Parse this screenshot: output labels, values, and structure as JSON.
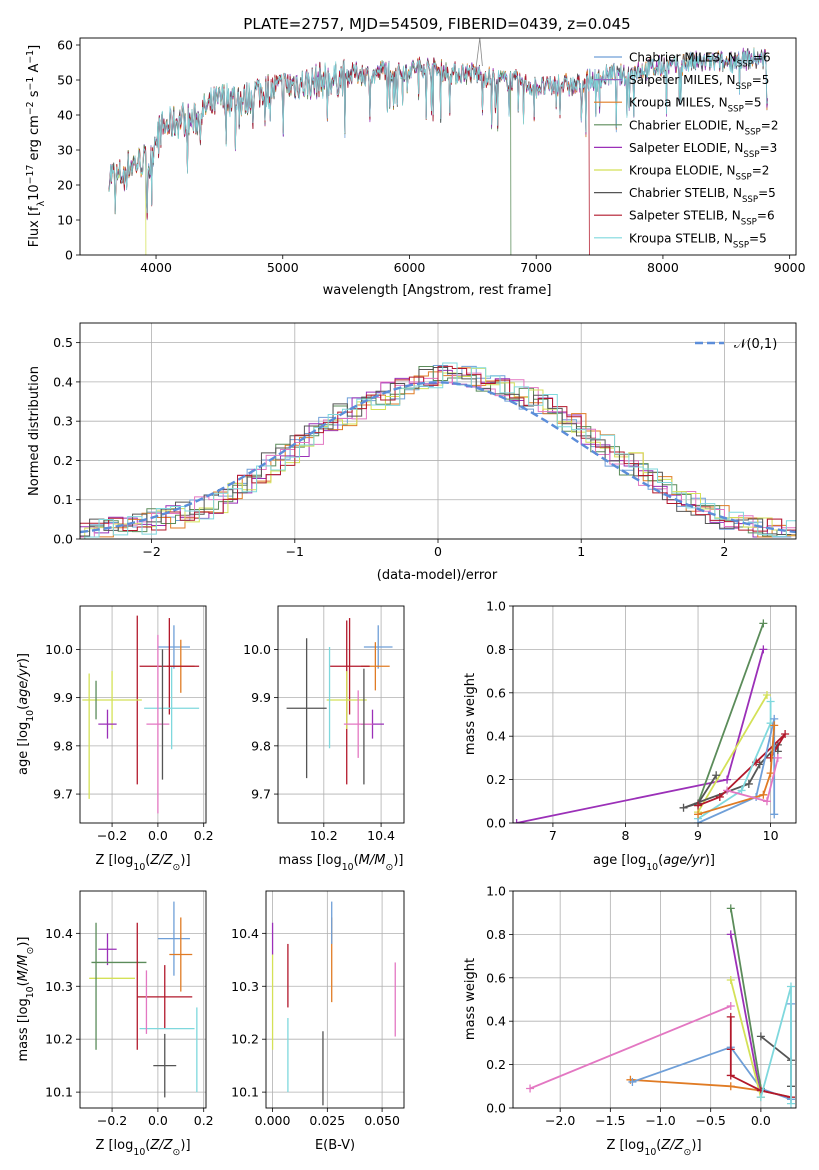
{
  "figure_title": "PLATE=2757, MJD=54509, FIBERID=0439, z=0.045",
  "colors": {
    "Chabrier MILES": "#6f9fd8",
    "Salpeter MILES": "#9467bd",
    "Kroupa MILES": "#e07b24",
    "Chabrier ELODIE": "#5b8c5a",
    "Salpeter ELODIE": "#9b30b8",
    "Kroupa ELODIE": "#d4e157",
    "Chabrier STELIB": "#555555",
    "Salpeter STELIB": "#b2182b",
    "Kroupa STELIB": "#7fd8dd",
    "pink": "#e377c2",
    "normal_curve": "#5b8dd9"
  },
  "chart_data": [
    {
      "type": "line",
      "title": "PLATE=2757, MJD=54509, FIBERID=0439, z=0.045",
      "xlabel": "wavelength [Angstrom, rest frame]",
      "ylabel": "Flux [f_λ10^-17 erg cm^-2 s^-1 A^-1]",
      "xlim": [
        3400,
        9050
      ],
      "ylim": [
        0,
        62
      ],
      "xticks": [
        "4000",
        "5000",
        "6000",
        "7000",
        "8000",
        "9000"
      ],
      "yticks": [
        "0",
        "10",
        "20",
        "30",
        "40",
        "50",
        "60"
      ],
      "legend_position": "top-right",
      "legend": [
        {
          "name": "Chabrier MILES",
          "nssp": "6"
        },
        {
          "name": "Salpeter MILES",
          "nssp": "5"
        },
        {
          "name": "Kroupa MILES",
          "nssp": "5"
        },
        {
          "name": "Chabrier ELODIE",
          "nssp": "2"
        },
        {
          "name": "Salpeter ELODIE",
          "nssp": "3"
        },
        {
          "name": "Kroupa ELODIE",
          "nssp": "2"
        },
        {
          "name": "Chabrier STELIB",
          "nssp": "5"
        },
        {
          "name": "Salpeter STELIB",
          "nssp": "6"
        },
        {
          "name": "Kroupa STELIB",
          "nssp": "5"
        }
      ],
      "continuum": {
        "wavelength": [
          3630,
          3700,
          3800,
          3900,
          3950,
          4000,
          4100,
          4200,
          4300,
          4400,
          4500,
          4600,
          4700,
          4800,
          4900,
          5000,
          5100,
          5200,
          5300,
          5400,
          5500,
          5600,
          5700,
          5800,
          5900,
          6000,
          6100,
          6200,
          6300,
          6400,
          6500,
          6600,
          6700,
          6800,
          6900,
          7000,
          7100,
          7200,
          7300,
          7400,
          7500,
          7600,
          7700,
          7800,
          7900,
          8000,
          8100,
          8200,
          8300,
          8400,
          8500,
          8600,
          8700,
          8800
        ],
        "flux": [
          23,
          22,
          26,
          27,
          25,
          35,
          37,
          39,
          38,
          42,
          44,
          45,
          44,
          47,
          47,
          48,
          49,
          49,
          50,
          50,
          51,
          52,
          51,
          53,
          52,
          53,
          54,
          53,
          52,
          52,
          52,
          51,
          50,
          50,
          49,
          48,
          48,
          49,
          48,
          50,
          50,
          52,
          51,
          53,
          53,
          54,
          54,
          55,
          55,
          55,
          55,
          56,
          56,
          56
        ]
      },
      "truncated_fits": [
        {
          "name": "Kroupa ELODIE",
          "ends_at": 3920
        },
        {
          "name": "Chabrier ELODIE",
          "ends_at": 6800
        },
        {
          "name": "Salpeter STELIB",
          "ends_at": 7420
        }
      ]
    },
    {
      "type": "bar",
      "xlabel": "(data-model)/error",
      "ylabel": "Normed distribution",
      "xlim": [
        -2.5,
        2.5
      ],
      "ylim": [
        0,
        0.55
      ],
      "xticks": [
        "−2",
        "−1",
        "0",
        "1",
        "2"
      ],
      "yticks": [
        "0.0",
        "0.1",
        "0.2",
        "0.3",
        "0.4",
        "0.5"
      ],
      "bin_width": 0.1,
      "legend_position": "top-right",
      "legend": [
        {
          "name": "𝒩(0,1)",
          "style": "dashed"
        }
      ],
      "histogram_center_values": [
        0.02,
        0.025,
        0.03,
        0.035,
        0.04,
        0.05,
        0.055,
        0.065,
        0.08,
        0.095,
        0.115,
        0.135,
        0.16,
        0.19,
        0.215,
        0.24,
        0.265,
        0.29,
        0.315,
        0.335,
        0.355,
        0.37,
        0.385,
        0.4,
        0.41,
        0.42,
        0.42,
        0.415,
        0.405,
        0.395,
        0.38,
        0.36,
        0.34,
        0.315,
        0.295,
        0.265,
        0.24,
        0.215,
        0.19,
        0.165,
        0.14,
        0.115,
        0.095,
        0.08,
        0.065,
        0.05,
        0.04,
        0.03,
        0.025,
        0.02
      ]
    },
    {
      "type": "scatter",
      "xlabel": "Z [log10(Z/Z⊙)]",
      "ylabel": "age  [log10(age/yr)]",
      "xlim": [
        -0.34,
        0.21
      ],
      "ylim": [
        9.64,
        10.09
      ],
      "xticks": [
        "−0.2",
        "0.0",
        "0.2"
      ],
      "yticks": [
        "9.7",
        "9.8",
        "9.9",
        "10.0"
      ],
      "errorbars": [
        {
          "series": "Chabrier MILES",
          "x": 0.07,
          "y": 10.005,
          "xerr": 0.07,
          "yerr": 0.045
        },
        {
          "series": "Kroupa MILES",
          "x": 0.1,
          "y": 9.965,
          "xerr": 0.06,
          "yerr": 0.055
        },
        {
          "series": "Salpeter STELIB",
          "x": 0.05,
          "y": 9.965,
          "xerr": 0.13,
          "yerr": 0.1
        },
        {
          "series": "Salpeter STELIB",
          "x": -0.09,
          "y": 9.895,
          "xerr": 0.0,
          "yerr": 0.175
        },
        {
          "series": "Kroupa ELODIE",
          "x": -0.2,
          "y": 9.895,
          "xerr": 0.13,
          "yerr": 0.06
        },
        {
          "series": "Chabrier ELODIE",
          "x": -0.27,
          "y": 9.895,
          "xerr": 0.0,
          "yerr": 0.04
        },
        {
          "series": "Kroupa STELIB",
          "x": 0.06,
          "y": 9.878,
          "xerr": 0.12,
          "yerr": 0.085
        },
        {
          "series": "Salpeter ELODIE",
          "x": -0.22,
          "y": 9.845,
          "xerr": 0.04,
          "yerr": 0.03
        },
        {
          "series": "pink",
          "x": 0.0,
          "y": 9.845,
          "xerr": 0.05,
          "yerr": 0.185
        },
        {
          "series": "Chabrier STELIB",
          "x": 0.02,
          "y": 9.865,
          "xerr": 0.0,
          "yerr": 0.135
        },
        {
          "series": "Kroupa ELODIE",
          "x": -0.3,
          "y": 9.82,
          "xerr": 0.0,
          "yerr": 0.13
        }
      ]
    },
    {
      "type": "scatter",
      "xlabel": "mass [log10(M/M⊙)]",
      "ylabel": "",
      "xlim": [
        10.04,
        10.48
      ],
      "ylim": [
        9.64,
        10.09
      ],
      "xticks": [
        "10.2",
        "10.4"
      ],
      "yticks": [
        "9.7",
        "9.8",
        "9.9",
        "10.0"
      ],
      "errorbars": [
        {
          "series": "Chabrier MILES",
          "x": 10.39,
          "y": 10.005,
          "xerr": 0.05,
          "yerr": 0.045
        },
        {
          "series": "Kroupa MILES",
          "x": 10.38,
          "y": 9.965,
          "xerr": 0.05,
          "yerr": 0.05
        },
        {
          "series": "Salpeter STELIB",
          "x": 10.29,
          "y": 9.965,
          "xerr": 0.07,
          "yerr": 0.1
        },
        {
          "series": "Salpeter STELIB",
          "x": 10.28,
          "y": 9.89,
          "xerr": 0.0,
          "yerr": 0.17
        },
        {
          "series": "Kroupa ELODIE",
          "x": 10.28,
          "y": 9.895,
          "xerr": 0.07,
          "yerr": 0.06
        },
        {
          "series": "Chabrier STELIB",
          "x": 10.14,
          "y": 9.878,
          "xerr": 0.07,
          "yerr": 0.145
        },
        {
          "series": "Kroupa STELIB",
          "x": 10.22,
          "y": 9.9,
          "xerr": 0.0,
          "yerr": 0.105
        },
        {
          "series": "Salpeter ELODIE",
          "x": 10.37,
          "y": 9.845,
          "xerr": 0.04,
          "yerr": 0.03
        },
        {
          "series": "pink",
          "x": 10.32,
          "y": 9.845,
          "xerr": 0.05,
          "yerr": 0.07
        },
        {
          "series": "Chabrier STELIB",
          "x": 10.34,
          "y": 9.84,
          "xerr": 0.0,
          "yerr": 0.12
        }
      ]
    },
    {
      "type": "line",
      "xlabel": "age  [log10(age/yr)]",
      "ylabel": "mass weight",
      "xlim": [
        6.45,
        10.35
      ],
      "ylim": [
        0,
        1
      ],
      "xticks": [
        "7",
        "8",
        "9",
        "10"
      ],
      "yticks": [
        "0.0",
        "0.2",
        "0.4",
        "0.6",
        "0.8",
        "1.0"
      ],
      "series": [
        {
          "name": "Salpeter ELODIE",
          "x": [
            6.5,
            9.4,
            9.9
          ],
          "y": [
            0.0,
            0.2,
            0.8
          ]
        },
        {
          "name": "Chabrier ELODIE",
          "x": [
            9.0,
            9.9
          ],
          "y": [
            0.09,
            0.92
          ]
        },
        {
          "name": "Kroupa ELODIE",
          "x": [
            9.0,
            9.95
          ],
          "y": [
            0.05,
            0.59
          ]
        },
        {
          "name": "Chabrier STELIB",
          "x": [
            9.25,
            9.0,
            8.8,
            9.7,
            9.85,
            10.1,
            10.1
          ],
          "y": [
            0.22,
            0.09,
            0.07,
            0.18,
            0.27,
            0.36,
            0.33
          ]
        },
        {
          "name": "Salpeter STELIB",
          "x": [
            9.0,
            9.3,
            9.8,
            10.2,
            10.0
          ],
          "y": [
            0.08,
            0.12,
            0.28,
            0.41,
            0.3
          ]
        },
        {
          "name": "Kroupa STELIB",
          "x": [
            9.0,
            9.6,
            10.0,
            10.0
          ],
          "y": [
            0.02,
            0.15,
            0.46,
            0.56
          ]
        },
        {
          "name": "Chabrier MILES",
          "x": [
            9.0,
            9.8,
            10.05,
            10.05
          ],
          "y": [
            0.0,
            0.12,
            0.48,
            0.04
          ]
        },
        {
          "name": "Kroupa MILES",
          "x": [
            9.0,
            9.9,
            10.0,
            10.05
          ],
          "y": [
            0.04,
            0.13,
            0.23,
            0.45
          ]
        },
        {
          "name": "pink",
          "x": [
            9.4,
            9.95,
            10.1
          ],
          "y": [
            0.15,
            0.1,
            0.3
          ]
        }
      ]
    },
    {
      "type": "scatter",
      "xlabel": "Z [log10(Z/Z⊙)]",
      "ylabel": "mass [log10(M/M⊙)]",
      "xlim": [
        -0.34,
        0.21
      ],
      "ylim": [
        10.07,
        10.48
      ],
      "xticks": [
        "−0.2",
        "0.0",
        "0.2"
      ],
      "yticks": [
        "10.1",
        "10.2",
        "10.3",
        "10.4"
      ],
      "errorbars": [
        {
          "series": "Salpeter ELODIE",
          "x": -0.22,
          "y": 10.37,
          "xerr": 0.04,
          "yerr": 0.03
        },
        {
          "series": "Chabrier MILES",
          "x": 0.07,
          "y": 10.39,
          "xerr": 0.07,
          "yerr": 0.07
        },
        {
          "series": "Kroupa MILES",
          "x": 0.1,
          "y": 10.36,
          "xerr": 0.05,
          "yerr": 0.07
        },
        {
          "series": "Chabrier ELODIE",
          "x": -0.17,
          "y": 10.345,
          "xerr": 0.12,
          "yerr": 0.0
        },
        {
          "series": "Kroupa ELODIE",
          "x": -0.2,
          "y": 10.315,
          "xerr": 0.1,
          "yerr": 0.0
        },
        {
          "series": "Salpeter STELIB",
          "x": 0.03,
          "y": 10.28,
          "xerr": 0.12,
          "yerr": 0.06
        },
        {
          "series": "Salpeter STELIB",
          "x": -0.09,
          "y": 10.3,
          "xerr": 0.0,
          "yerr": 0.12
        },
        {
          "series": "Chabrier ELODIE",
          "x": -0.27,
          "y": 10.3,
          "xerr": 0.0,
          "yerr": 0.12
        },
        {
          "series": "Kroupa STELIB",
          "x": 0.04,
          "y": 10.22,
          "xerr": 0.12,
          "yerr": 0.0
        },
        {
          "series": "Kroupa STELIB",
          "x": 0.17,
          "y": 10.18,
          "xerr": 0.0,
          "yerr": 0.08
        },
        {
          "series": "Chabrier STELIB",
          "x": 0.03,
          "y": 10.15,
          "xerr": 0.05,
          "yerr": 0.06
        },
        {
          "series": "pink",
          "x": -0.05,
          "y": 10.27,
          "xerr": 0.0,
          "yerr": 0.06
        }
      ]
    },
    {
      "type": "scatter",
      "xlabel": "E(B-V)",
      "ylabel": "",
      "xlim": [
        -0.003,
        0.06
      ],
      "ylim": [
        10.07,
        10.48
      ],
      "xticks": [
        "0.000",
        "0.025",
        "0.050"
      ],
      "yticks": [
        "10.1",
        "10.2",
        "10.3",
        "10.4"
      ],
      "errorbars": [
        {
          "series": "Salpeter ELODIE",
          "x": 0.0,
          "y": 10.39,
          "xerr": 0.0,
          "yerr": 0.03
        },
        {
          "series": "Kroupa ELODIE",
          "x": 0.0,
          "y": 10.27,
          "xerr": 0.0,
          "yerr": 0.09
        },
        {
          "series": "Salpeter STELIB",
          "x": 0.007,
          "y": 10.32,
          "xerr": 0.0,
          "yerr": 0.06
        },
        {
          "series": "Kroupa STELIB",
          "x": 0.007,
          "y": 10.17,
          "xerr": 0.0,
          "yerr": 0.07
        },
        {
          "series": "Chabrier STELIB",
          "x": 0.023,
          "y": 10.145,
          "xerr": 0.0,
          "yerr": 0.07
        },
        {
          "series": "Kroupa MILES",
          "x": 0.027,
          "y": 10.35,
          "xerr": 0.0,
          "yerr": 0.08
        },
        {
          "series": "Chabrier MILES",
          "x": 0.027,
          "y": 10.42,
          "xerr": 0.0,
          "yerr": 0.04
        },
        {
          "series": "pink",
          "x": 0.056,
          "y": 10.275,
          "xerr": 0.0,
          "yerr": 0.07
        }
      ]
    },
    {
      "type": "line",
      "xlabel": "Z [log10(Z/Z⊙)]",
      "ylabel": "mass weight",
      "xlim": [
        -2.47,
        0.35
      ],
      "ylim": [
        0,
        1
      ],
      "xticks": [
        "−2.0",
        "−1.5",
        "−1.0",
        "−0.5",
        "0.0"
      ],
      "yticks": [
        "0.0",
        "0.2",
        "0.4",
        "0.6",
        "0.8",
        "1.0"
      ],
      "series": [
        {
          "name": "pink",
          "x": [
            -2.3,
            -0.3
          ],
          "y": [
            0.09,
            0.47
          ]
        },
        {
          "name": "Kroupa MILES",
          "x": [
            -1.3,
            -0.3,
            0.0,
            0.3
          ],
          "y": [
            0.13,
            0.1,
            0.08,
            0.05
          ]
        },
        {
          "name": "Chabrier MILES",
          "x": [
            -1.28,
            -0.3,
            0.0,
            0.3,
            0.3
          ],
          "y": [
            0.12,
            0.28,
            0.09,
            0.04,
            0.48
          ]
        },
        {
          "name": "Chabrier ELODIE",
          "x": [
            -0.3,
            0.0
          ],
          "y": [
            0.92,
            0.09
          ]
        },
        {
          "name": "Salpeter ELODIE",
          "x": [
            -0.3,
            0.0
          ],
          "y": [
            0.8,
            0.05
          ]
        },
        {
          "name": "Kroupa ELODIE",
          "x": [
            -0.3,
            0.0
          ],
          "y": [
            0.59,
            0.05
          ]
        },
        {
          "name": "Salpeter STELIB",
          "x": [
            -0.3,
            -0.3,
            -0.3,
            0.0,
            0.3
          ],
          "y": [
            0.42,
            0.27,
            0.15,
            0.08,
            0.05
          ]
        },
        {
          "name": "Chabrier STELIB",
          "x": [
            0.0,
            0.3,
            0.3
          ],
          "y": [
            0.33,
            0.22,
            0.1
          ]
        },
        {
          "name": "Kroupa STELIB",
          "x": [
            0.0,
            0.3,
            0.3
          ],
          "y": [
            0.05,
            0.56,
            0.02
          ]
        }
      ]
    }
  ]
}
